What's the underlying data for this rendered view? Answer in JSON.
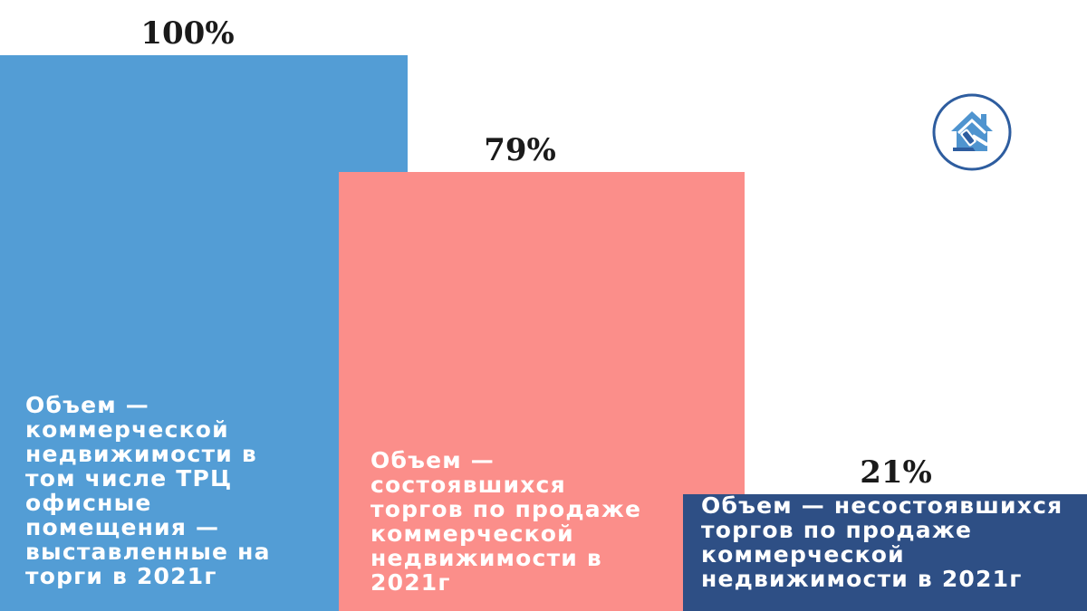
{
  "chart_data": {
    "type": "bar",
    "categories": [
      "Объем — коммерческой недвижимости в том числе ТРЦ офисные помещения — выставленные на торги в 2021г",
      "Объем — состоявшихся торгов по продаже коммерческой недвижимости в 2021г",
      "Объем — несостоявшихся торгов по продаже коммерческой недвижимости в 2021г"
    ],
    "values": [
      100,
      79,
      21
    ],
    "value_labels": [
      "100%",
      "79%",
      "21%"
    ],
    "colors": [
      "#539dd5",
      "#fb8e8a",
      "#2e4f85"
    ],
    "ylim": [
      0,
      100
    ],
    "legend": "none",
    "grid": false
  },
  "logo": {
    "icon": "house-gavel-icon",
    "color": "#2e5d9f"
  }
}
